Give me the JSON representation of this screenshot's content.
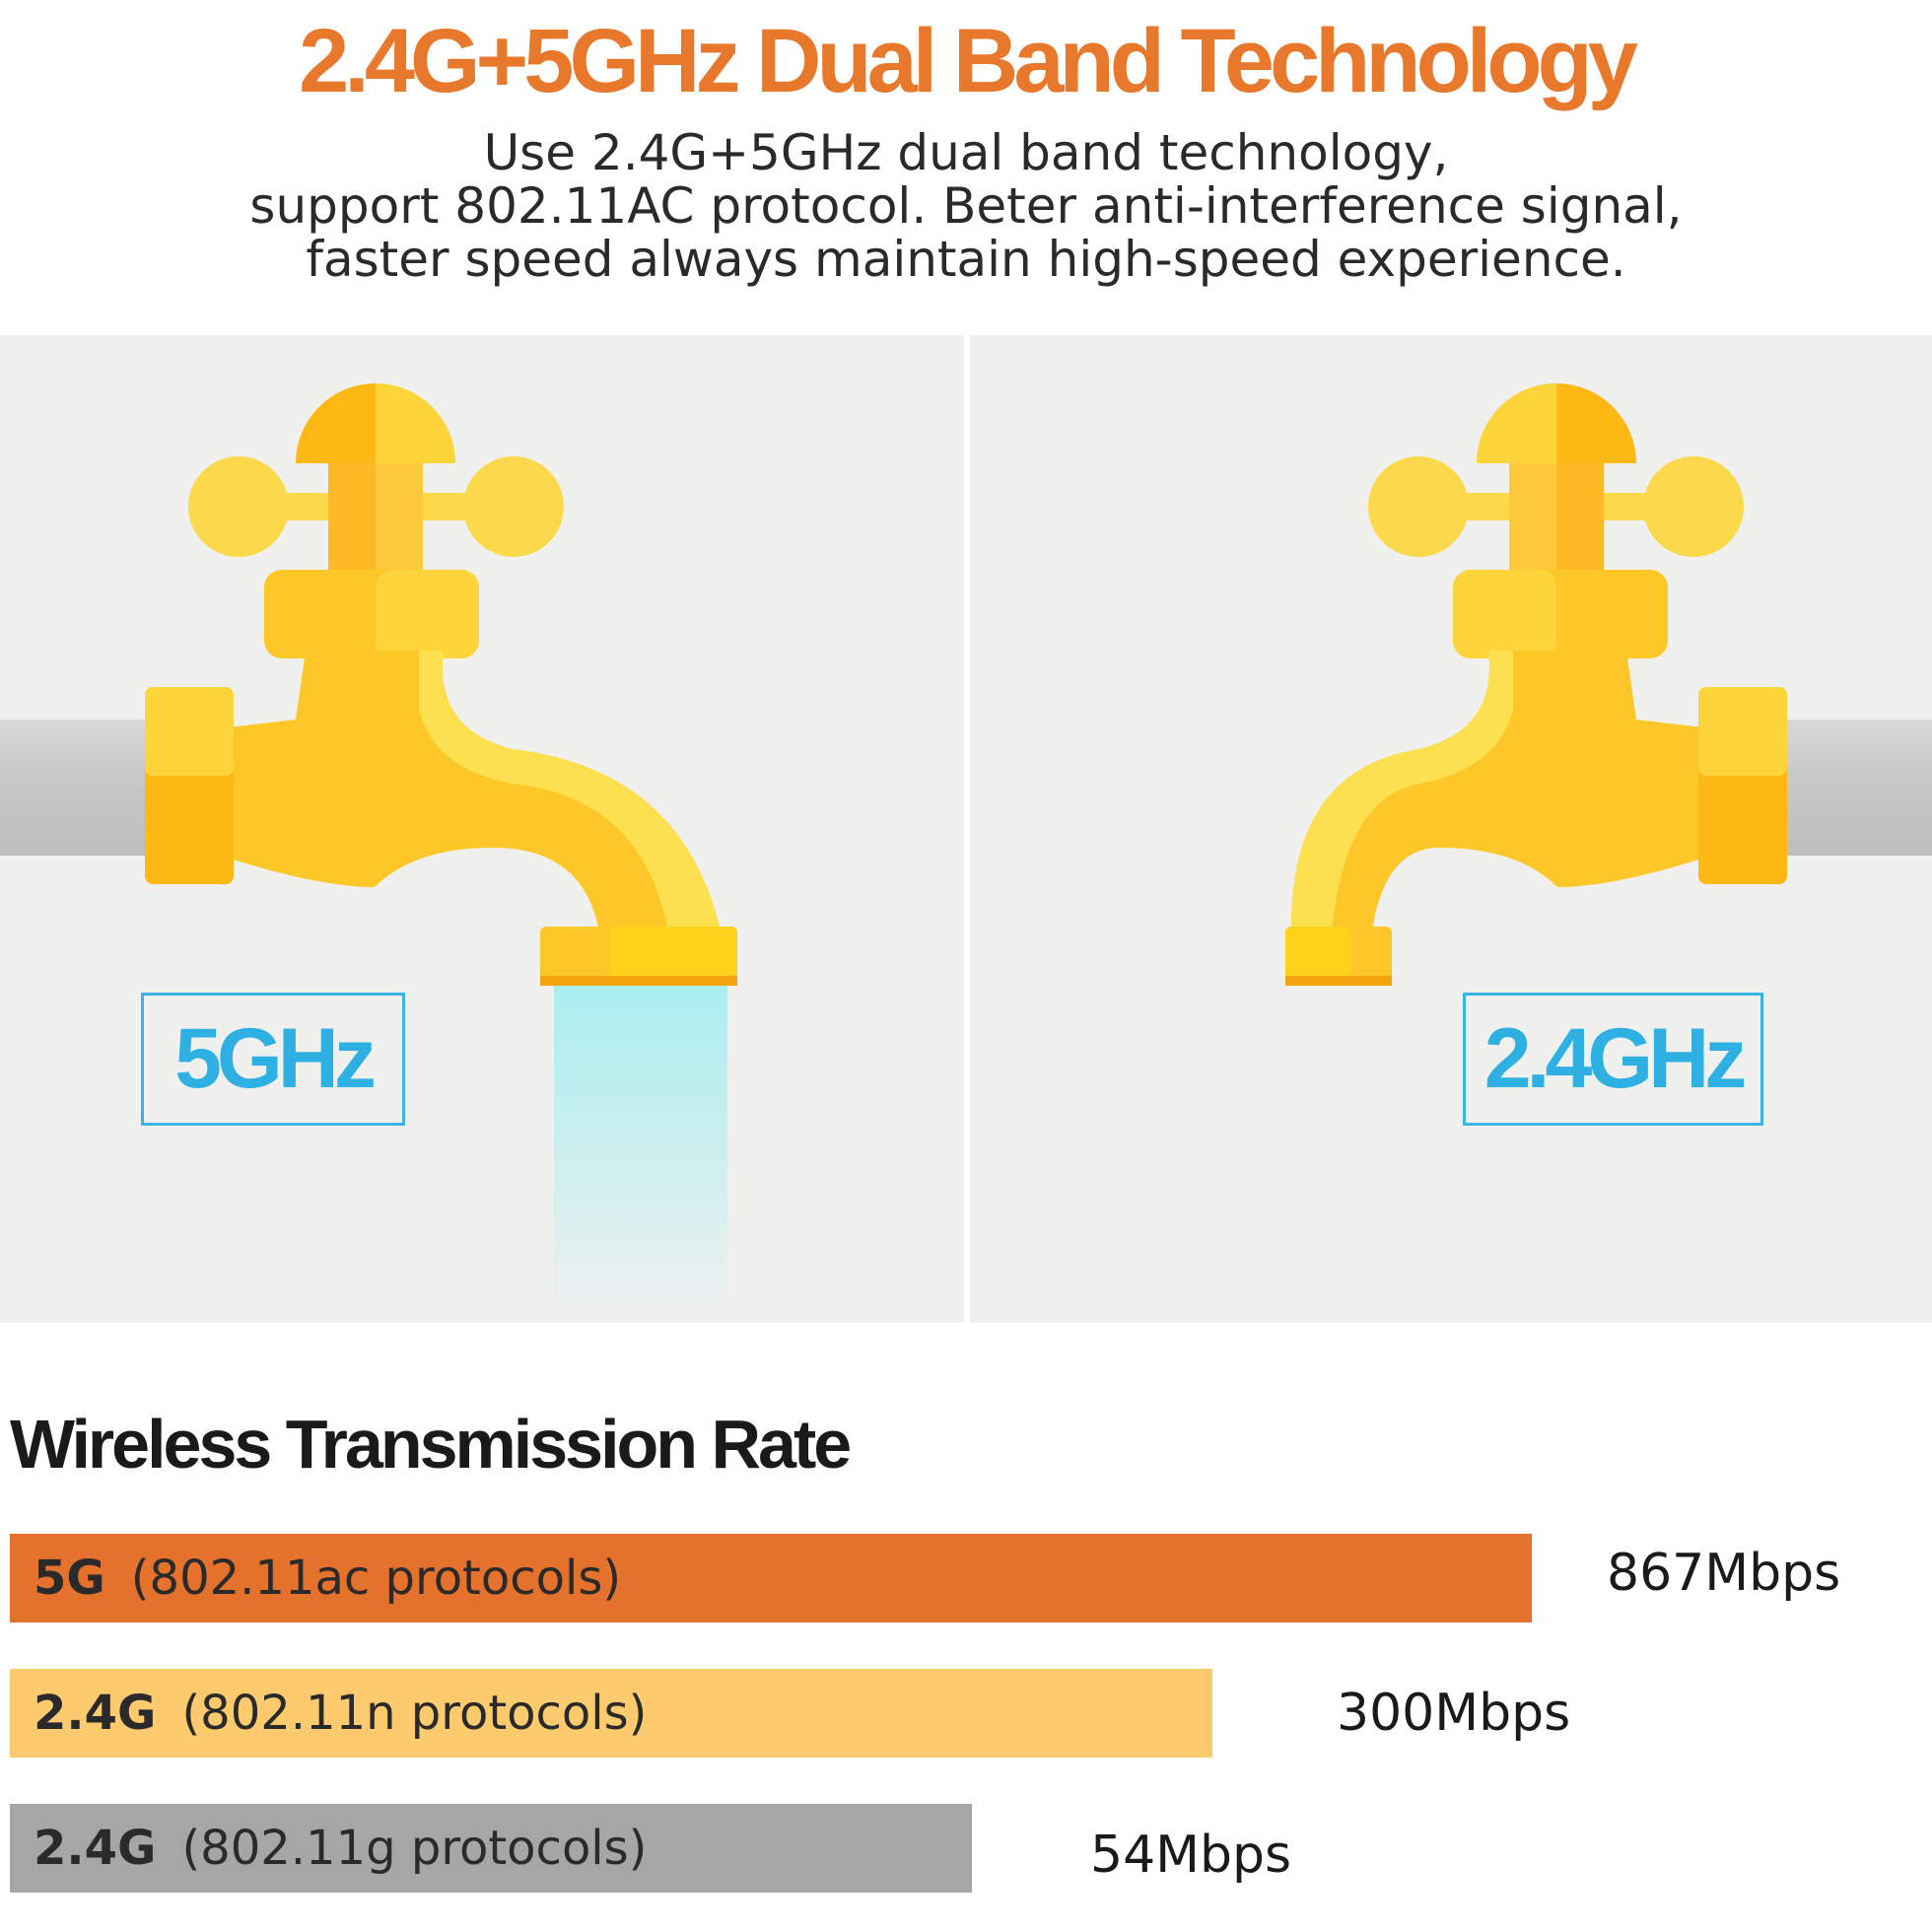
{
  "header": {
    "title": "2.4G+5GHz Dual Band Technology",
    "subtitle_lines": [
      "Use 2.4G+5GHz dual band technology,",
      "support 802.11AC protocol. Beter anti-interference signal,",
      "faster speed always maintain high-speed experience."
    ]
  },
  "illustration": {
    "left_label": "5GHz",
    "right_label": "2.4GHz"
  },
  "rates": {
    "title": "Wireless Transmission Rate",
    "items": [
      {
        "band": "5G",
        "protocol": "(802.11ac protocols)",
        "value": "867Mbps",
        "color": "#E5722C"
      },
      {
        "band": "2.4G",
        "protocol": "(802.11n protocols)",
        "value": "300Mbps",
        "color": "#FDCB6E"
      },
      {
        "band": "2.4G",
        "protocol": "(802.11g protocols)",
        "value": "54Mbps",
        "color": "#A6A6A6"
      }
    ]
  },
  "colors": {
    "title": "#E8782B",
    "label_blue": "#2FB0E3",
    "faucet_yellow": "#FDD53A",
    "faucet_orange": "#FDB813",
    "water": "#A9EEF0"
  }
}
